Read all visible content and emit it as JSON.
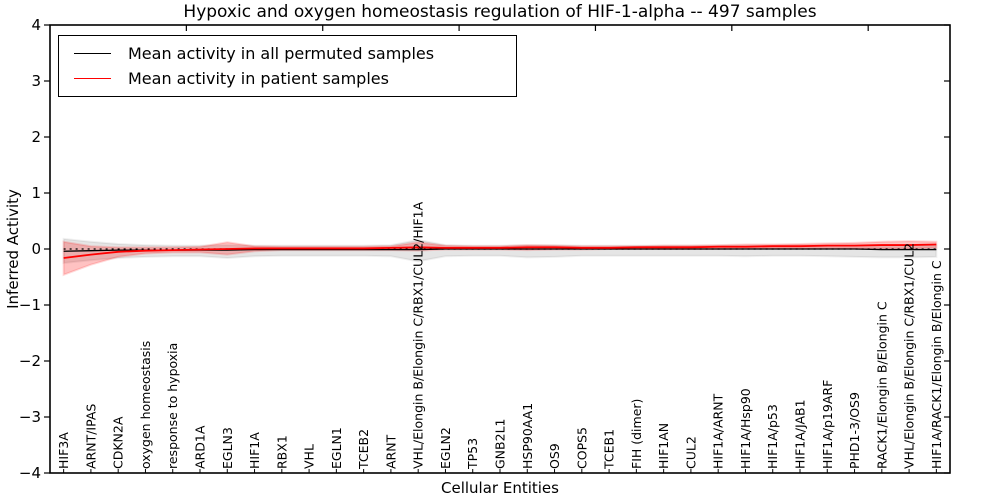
{
  "figure": {
    "title": "Hypoxic and oxygen homeostasis regulation of HIF-1-alpha -- 497 samples",
    "sample_count_shown_in_title": "497 samples"
  },
  "chart_data": {
    "type": "line",
    "title": "Hypoxic and oxygen homeostasis regulation of HIF-1-alpha -- 497 samples",
    "xlabel": "Cellular Entities",
    "ylabel": "Inferred Activity",
    "ylim": [
      -4,
      4
    ],
    "yticks": [
      -4,
      -3,
      -2,
      -1,
      0,
      1,
      2,
      3,
      4
    ],
    "xlim_index": [
      0,
      33
    ],
    "xticks_top_index": [
      5,
      10,
      15,
      20,
      25,
      30
    ],
    "grid": false,
    "zero_reference_line": {
      "y": 0,
      "style": "dotted",
      "color": "#000000"
    },
    "legend": {
      "position": "upper left",
      "entries": [
        {
          "label": "Mean activity in all permuted samples",
          "color": "#000000"
        },
        {
          "label": "Mean activity in patient samples",
          "color": "#ff0000"
        }
      ]
    },
    "categories": [
      "HIF3A",
      "ARNT/IPAS",
      "CDKN2A",
      "oxygen homeostasis",
      "response to hypoxia",
      "ARD1A",
      "EGLN3",
      "HIF1A",
      "RBX1",
      "VHL",
      "EGLN1",
      "TCEB2",
      "ARNT",
      "VHL/Elongin B/Elongin C/RBX1/CUL2/HIF1A",
      "EGLN2",
      "TP53",
      "GNB2L1",
      "HSP90AA1",
      "OS9",
      "COPS5",
      "TCEB1",
      "FIH (dimer)",
      "HIF1AN",
      "CUL2",
      "HIF1A/ARNT",
      "HIF1A/Hsp90",
      "HIF1A/p53",
      "HIF1A/JAB1",
      "HIF1A/p19ARF",
      "PHD1-3/OS9",
      "RACK1/Elongin B/Elongin C",
      "VHL/Elongin B/Elongin C/RBX1/CUL2",
      "HIF1A/RACK1/Elongin B/Elongin C"
    ],
    "series": [
      {
        "name": "Mean activity in all permuted samples",
        "color": "#000000",
        "values": [
          -0.04,
          -0.03,
          -0.02,
          -0.02,
          -0.02,
          -0.02,
          -0.02,
          -0.01,
          -0.01,
          -0.01,
          -0.01,
          -0.01,
          -0.01,
          -0.01,
          0.0,
          0.0,
          0.0,
          0.0,
          0.0,
          0.0,
          0.0,
          0.0,
          0.0,
          0.0,
          0.0,
          0.0,
          0.0,
          0.0,
          0.0,
          0.0,
          -0.01,
          -0.01,
          -0.01
        ]
      },
      {
        "name": "Mean activity in patient samples",
        "color": "#ff0000",
        "values": [
          -0.16,
          -0.1,
          -0.05,
          -0.03,
          -0.02,
          -0.01,
          0.0,
          0.01,
          0.01,
          0.01,
          0.01,
          0.01,
          0.02,
          0.03,
          0.02,
          0.02,
          0.02,
          0.03,
          0.03,
          0.02,
          0.02,
          0.03,
          0.03,
          0.03,
          0.04,
          0.04,
          0.05,
          0.05,
          0.06,
          0.06,
          0.07,
          0.07,
          0.08
        ]
      }
    ],
    "bands": [
      {
        "name": "permuted samples activity spread",
        "color": "#000000",
        "fill_opacity": 0.1,
        "hi": [
          0.18,
          0.13,
          0.09,
          0.07,
          0.06,
          0.06,
          0.07,
          0.06,
          0.06,
          0.06,
          0.06,
          0.06,
          0.07,
          0.16,
          0.07,
          0.06,
          0.06,
          0.07,
          0.07,
          0.06,
          0.06,
          0.06,
          0.06,
          0.06,
          0.06,
          0.06,
          0.06,
          0.06,
          0.06,
          0.07,
          0.07,
          0.07,
          0.06
        ],
        "lo": [
          -0.25,
          -0.2,
          -0.16,
          -0.14,
          -0.13,
          -0.13,
          -0.16,
          -0.13,
          -0.12,
          -0.12,
          -0.12,
          -0.12,
          -0.13,
          -0.22,
          -0.13,
          -0.12,
          -0.12,
          -0.15,
          -0.14,
          -0.12,
          -0.12,
          -0.12,
          -0.12,
          -0.12,
          -0.12,
          -0.13,
          -0.12,
          -0.12,
          -0.13,
          -0.14,
          -0.15,
          -0.15,
          -0.14
        ]
      },
      {
        "name": "patient samples activity spread",
        "color": "#ff0000",
        "fill_opacity": 0.24,
        "hi": [
          0.13,
          0.05,
          0.03,
          0.03,
          0.03,
          0.04,
          0.12,
          0.05,
          0.04,
          0.04,
          0.04,
          0.04,
          0.05,
          0.12,
          0.06,
          0.05,
          0.05,
          0.07,
          0.06,
          0.05,
          0.05,
          0.05,
          0.06,
          0.06,
          0.07,
          0.08,
          0.08,
          0.09,
          0.1,
          0.11,
          0.13,
          0.14,
          0.13
        ],
        "lo": [
          -0.46,
          -0.28,
          -0.14,
          -0.08,
          -0.06,
          -0.06,
          -0.1,
          -0.04,
          -0.02,
          -0.02,
          -0.02,
          -0.02,
          -0.02,
          -0.03,
          -0.01,
          -0.01,
          -0.01,
          -0.02,
          -0.01,
          -0.01,
          0.0,
          0.0,
          0.0,
          0.0,
          0.0,
          0.01,
          0.01,
          0.01,
          0.01,
          0.01,
          0.01,
          0.01,
          0.02
        ]
      }
    ],
    "colors": {
      "background": "#ffffff",
      "axes": "#000000"
    }
  }
}
